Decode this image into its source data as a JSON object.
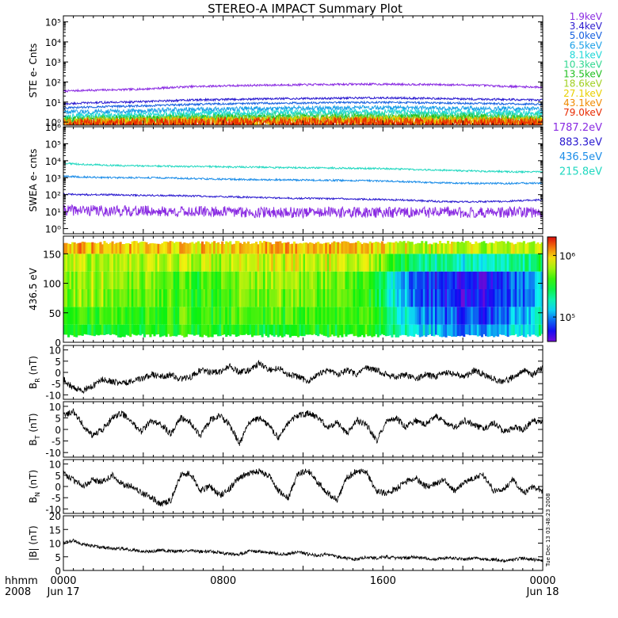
{
  "title": "STEREO-A IMPACT Summary Plot",
  "time_axis": {
    "corner_labels": [
      "hhmm",
      "2008"
    ],
    "ticks": [
      {
        "hhmm": "0000",
        "date": "Jun 17",
        "hour": 0
      },
      {
        "hhmm": "0800",
        "date": "",
        "hour": 8
      },
      {
        "hhmm": "1600",
        "date": "",
        "hour": 16
      },
      {
        "hhmm": "0000",
        "date": "Jun 18",
        "hour": 24
      }
    ],
    "range_hours": [
      0,
      24
    ]
  },
  "side_note": "Tue Dec 13 03:48:23 2008",
  "chart_data": [
    {
      "id": "ste",
      "type": "line",
      "ylabel": "STE e- Cnts",
      "yscale": "log",
      "ylim": [
        0.7,
        200000
      ],
      "ytick_exponents": [
        0,
        1,
        2,
        3,
        4,
        5
      ],
      "series": [
        {
          "name": "1.9keV",
          "color": "#8a2be2",
          "values": [
            35,
            38,
            40,
            42,
            45,
            52,
            58,
            62,
            65,
            68,
            70,
            72,
            74,
            76,
            78,
            78,
            77,
            76,
            74,
            72,
            68,
            62,
            58,
            55
          ]
        },
        {
          "name": "3.4keV",
          "color": "#2a1ad0",
          "values": [
            8,
            9,
            9.5,
            10,
            10.5,
            11.5,
            12.5,
            13,
            13.5,
            14,
            14.5,
            15,
            15,
            15.5,
            16,
            16,
            16,
            15.5,
            15,
            14.5,
            14,
            13.5,
            13,
            12.5
          ]
        },
        {
          "name": "5.0keV",
          "color": "#1560e0",
          "values": [
            5,
            5.5,
            6,
            6.2,
            6.5,
            7,
            7.5,
            8,
            8.2,
            8.5,
            8.8,
            9,
            9,
            9.2,
            9.5,
            9.5,
            9.5,
            9.2,
            9,
            8.8,
            8.5,
            8.2,
            8,
            7.8
          ]
        },
        {
          "name": "6.5keV",
          "color": "#1aa0e8",
          "values": [
            3,
            3.2,
            3.4,
            3.5,
            3.7,
            4,
            4.2,
            4.4,
            4.5,
            4.7,
            4.8,
            5,
            5,
            5.1,
            5.2,
            5.2,
            5.2,
            5.1,
            5,
            4.9,
            4.8,
            4.6,
            4.5,
            4.4
          ]
        },
        {
          "name": "8.1keV",
          "color": "#20d8d8",
          "values": [
            2,
            2.1,
            2.2,
            2.3,
            2.4,
            2.6,
            2.7,
            2.8,
            2.9,
            3,
            3,
            3.1,
            3.1,
            3.2,
            3.2,
            3.2,
            3.2,
            3.1,
            3.1,
            3,
            3,
            2.9,
            2.8,
            2.8
          ]
        },
        {
          "name": "10.3keV",
          "color": "#30d890",
          "values": [
            1.6,
            1.6,
            1.7,
            1.7,
            1.8,
            1.9,
            2,
            2,
            2.1,
            2.1,
            2.2,
            2.2,
            2.2,
            2.3,
            2.3,
            2.3,
            2.3,
            2.2,
            2.2,
            2.2,
            2.1,
            2.1,
            2,
            2
          ]
        },
        {
          "name": "13.5keV",
          "color": "#20c020",
          "values": [
            1.3,
            1.3,
            1.35,
            1.4,
            1.4,
            1.5,
            1.5,
            1.55,
            1.6,
            1.6,
            1.6,
            1.65,
            1.65,
            1.7,
            1.7,
            1.7,
            1.7,
            1.65,
            1.65,
            1.6,
            1.6,
            1.55,
            1.5,
            1.5
          ]
        },
        {
          "name": "18.6keV",
          "color": "#a0d020",
          "values": [
            1.1,
            1.1,
            1.15,
            1.2,
            1.2,
            1.25,
            1.3,
            1.3,
            1.3,
            1.35,
            1.35,
            1.35,
            1.4,
            1.4,
            1.4,
            1.4,
            1.4,
            1.35,
            1.35,
            1.35,
            1.3,
            1.3,
            1.3,
            1.25
          ]
        },
        {
          "name": "27.1keV",
          "color": "#e8d000",
          "values": [
            0.95,
            0.95,
            1,
            1,
            1,
            1.05,
            1.05,
            1.1,
            1.1,
            1.1,
            1.1,
            1.15,
            1.15,
            1.15,
            1.15,
            1.15,
            1.15,
            1.1,
            1.1,
            1.1,
            1.1,
            1.05,
            1.05,
            1.05
          ]
        },
        {
          "name": "43.1keV",
          "color": "#f08a00",
          "values": [
            0.85,
            0.85,
            0.9,
            0.9,
            0.9,
            0.95,
            0.95,
            0.95,
            1,
            1,
            1,
            1,
            1,
            1,
            1,
            1,
            1,
            1,
            1,
            0.95,
            0.95,
            0.95,
            0.95,
            0.9
          ]
        },
        {
          "name": "79.0keV",
          "color": "#e82a00",
          "values": [
            0.8,
            0.8,
            0.8,
            0.85,
            0.85,
            0.85,
            0.85,
            0.9,
            0.9,
            0.9,
            0.9,
            0.9,
            0.9,
            0.9,
            0.9,
            0.9,
            0.9,
            0.9,
            0.85,
            0.85,
            0.85,
            0.85,
            0.85,
            0.8
          ]
        }
      ]
    },
    {
      "id": "swea",
      "type": "line",
      "ylabel": "SWEA e- cnts",
      "yscale": "log",
      "ylim": [
        0.5,
        1000000
      ],
      "ytick_exponents": [
        0,
        1,
        2,
        3,
        4,
        5,
        6
      ],
      "series": [
        {
          "name": "1787.2eV",
          "color": "#8a2be2",
          "values": [
            12,
            12,
            11,
            11,
            11,
            10,
            10,
            10,
            10,
            9,
            9,
            9,
            9,
            9,
            9,
            9,
            9,
            9,
            9,
            9,
            9,
            9,
            9,
            9
          ]
        },
        {
          "name": "883.3eV",
          "color": "#2a1ad0",
          "values": [
            110,
            100,
            100,
            95,
            90,
            90,
            85,
            80,
            75,
            70,
            65,
            62,
            60,
            58,
            55,
            52,
            50,
            45,
            40,
            38,
            38,
            40,
            45,
            50
          ]
        },
        {
          "name": "436.5eV",
          "color": "#1a8ce8",
          "values": [
            1200,
            1100,
            1000,
            1000,
            1000,
            950,
            900,
            850,
            800,
            780,
            760,
            740,
            720,
            700,
            680,
            650,
            600,
            550,
            500,
            480,
            460,
            460,
            470,
            480
          ]
        },
        {
          "name": "215.8eV",
          "color": "#20d8c0",
          "values": [
            7000,
            6000,
            5500,
            5000,
            5000,
            4800,
            4600,
            4500,
            4300,
            4200,
            4000,
            3900,
            3800,
            3700,
            3600,
            3500,
            3300,
            3000,
            2800,
            2600,
            2400,
            2300,
            2200,
            2300
          ]
        }
      ]
    },
    {
      "id": "pad",
      "type": "heatmap",
      "ylabel": "436.5 eV",
      "ylim": [
        0,
        180
      ],
      "yticks": [
        0,
        50,
        100,
        150
      ],
      "colorbar": {
        "scale": "log",
        "range": [
          40000,
          2000000
        ],
        "tick_exponents": [
          5,
          6
        ]
      },
      "x_hours": [
        0,
        2,
        4,
        6,
        8,
        10,
        12,
        14,
        16,
        18,
        20,
        22
      ],
      "pitch_angles": [
        15,
        45,
        75,
        105,
        135,
        165
      ],
      "values_log10": [
        [
          5.55,
          5.55,
          5.55,
          5.55,
          5.55,
          5.45,
          5.55,
          5.55,
          5.2,
          4.95,
          5.05,
          5.3
        ],
        [
          5.65,
          5.65,
          5.6,
          5.6,
          5.65,
          5.6,
          5.6,
          5.6,
          5.1,
          4.85,
          4.9,
          5.25
        ],
        [
          5.75,
          5.75,
          5.7,
          5.55,
          5.7,
          5.7,
          5.7,
          5.55,
          4.95,
          4.75,
          4.8,
          5.15
        ],
        [
          5.8,
          5.8,
          5.75,
          5.55,
          5.75,
          5.75,
          5.7,
          5.55,
          4.95,
          4.75,
          4.8,
          5.15
        ],
        [
          5.85,
          5.85,
          5.85,
          5.8,
          5.85,
          5.85,
          5.85,
          5.8,
          5.4,
          5.25,
          5.25,
          5.45
        ],
        [
          6.05,
          6.05,
          6.0,
          5.95,
          6.0,
          6.0,
          6.0,
          5.95,
          5.85,
          5.8,
          5.8,
          5.85
        ]
      ]
    },
    {
      "id": "br",
      "type": "line",
      "ylabel": "B_R (nT)",
      "ylim": [
        -12,
        12
      ],
      "yticks": [
        -10,
        -5,
        0,
        5,
        10
      ],
      "values": [
        -3,
        -7,
        -8,
        -6,
        -3,
        -4,
        -5,
        -4,
        -3,
        -1,
        -2,
        -1,
        -3,
        -2,
        1,
        0,
        0,
        3,
        0,
        1,
        4,
        1,
        2,
        -1,
        -2,
        -4,
        -1,
        1,
        -1,
        1,
        -1,
        2,
        1,
        -1,
        -2,
        -1,
        -3,
        -1,
        -2,
        0,
        -1,
        -2,
        1,
        -1,
        -3,
        -4,
        -2,
        1,
        -1,
        2
      ]
    },
    {
      "id": "bt",
      "type": "line",
      "ylabel": "B_T (nT)",
      "ylim": [
        -12,
        12
      ],
      "yticks": [
        -10,
        -5,
        0,
        5,
        10
      ],
      "values": [
        6,
        8,
        2,
        -3,
        0,
        5,
        7,
        3,
        -1,
        4,
        2,
        -2,
        5,
        3,
        -3,
        4,
        6,
        2,
        -6,
        3,
        5,
        2,
        -4,
        3,
        6,
        7,
        5,
        1,
        3,
        -2,
        4,
        2,
        -5,
        3,
        5,
        1,
        4,
        2,
        6,
        3,
        1,
        4,
        2,
        0,
        3,
        -1,
        1,
        0,
        4,
        3
      ]
    },
    {
      "id": "bn",
      "type": "line",
      "ylabel": "B_N (nT)",
      "ylim": [
        -12,
        12
      ],
      "yticks": [
        -10,
        -5,
        0,
        5,
        10
      ],
      "values": [
        6,
        3,
        0,
        3,
        2,
        5,
        1,
        0,
        -3,
        -5,
        -8,
        -6,
        5,
        6,
        -2,
        0,
        -4,
        -1,
        4,
        6,
        7,
        5,
        -2,
        -5,
        6,
        7,
        2,
        -3,
        -6,
        4,
        7,
        6,
        -2,
        -3,
        -1,
        2,
        4,
        0,
        1,
        3,
        -2,
        2,
        4,
        5,
        -2,
        -1,
        3,
        -3,
        0,
        -2
      ]
    },
    {
      "id": "bmag",
      "type": "line",
      "ylabel": "|B| (nT)",
      "ylim": [
        0,
        20
      ],
      "yticks": [
        0,
        5,
        10,
        15,
        20
      ],
      "values": [
        10,
        11,
        9.5,
        9,
        8.5,
        8,
        8,
        7.5,
        7,
        7,
        7.5,
        7,
        7,
        7.5,
        7,
        7,
        6.5,
        6,
        6,
        7,
        7,
        6.5,
        6,
        6,
        7,
        6,
        5.5,
        6,
        5,
        4.5,
        4,
        5,
        4.5,
        5,
        4.5,
        4.5,
        5,
        4.5,
        4,
        4.5,
        4.5,
        4,
        4.5,
        4,
        4,
        3.5,
        4,
        4.5,
        4,
        3.5
      ]
    }
  ]
}
